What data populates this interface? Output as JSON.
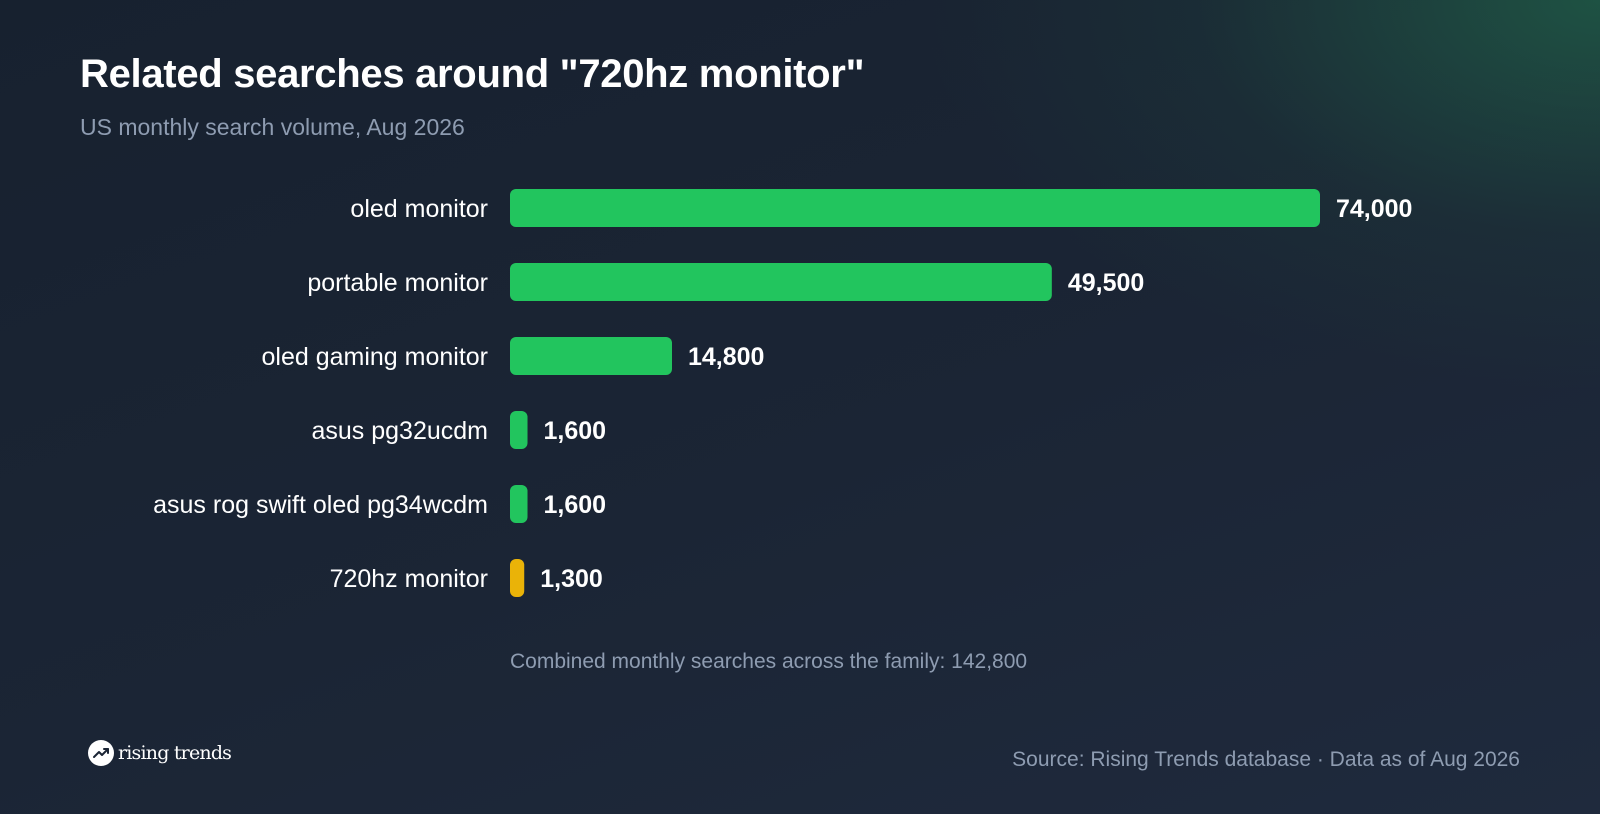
{
  "header": {
    "title": "Related searches around \"720hz monitor\"",
    "subtitle": "US monthly search volume, Aug 2026"
  },
  "chart_data": {
    "type": "bar",
    "orientation": "horizontal",
    "title": "Related searches around \"720hz monitor\"",
    "subtitle": "US monthly search volume, Aug 2026",
    "categories": [
      "oled monitor",
      "portable monitor",
      "oled gaming monitor",
      "asus pg32ucdm",
      "asus rog swift oled pg34wcdm",
      "720hz monitor"
    ],
    "values": [
      74000,
      49500,
      14800,
      1600,
      1600,
      1300
    ],
    "value_labels": [
      "74,000",
      "49,500",
      "14,800",
      "1,600",
      "1,600",
      "1,300"
    ],
    "highlight_category": "720hz monitor",
    "colors": {
      "bar": "#22c55e",
      "highlight": "#eab308"
    },
    "xlim": [
      0,
      74000
    ],
    "grid": false,
    "legend": "none"
  },
  "footer": {
    "note": "Combined monthly searches across the family: 142,800",
    "brand": "rising trends",
    "brand_icon": "trending-up-icon",
    "source": "Source: Rising Trends database · Data as of Aug 2026"
  }
}
